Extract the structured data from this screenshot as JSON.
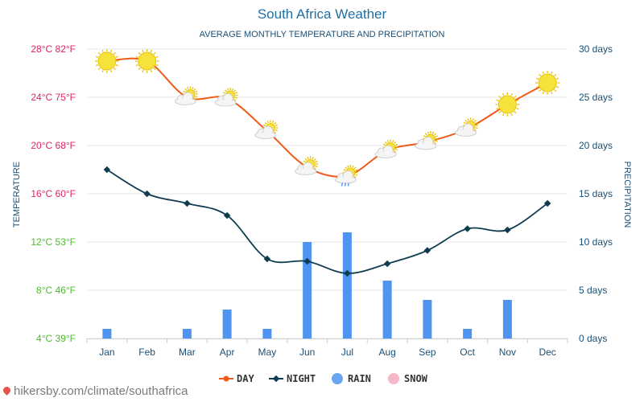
{
  "header": {
    "title": "South Africa Weather",
    "subtitle": "AVERAGE MONTHLY TEMPERATURE AND PRECIPITATION"
  },
  "axes": {
    "left_title": "TEMPERATURE",
    "right_title": "PRECIPITATION",
    "left_ticks": [
      "4°C 39°F",
      "8°C 46°F",
      "12°C 53°F",
      "16°C 60°F",
      "20°C 68°F",
      "24°C 75°F",
      "28°C 82°F"
    ],
    "right_ticks": [
      "0 days",
      "5 days",
      "10 days",
      "15 days",
      "20 days",
      "25 days",
      "30 days"
    ]
  },
  "legend": {
    "day": "DAY",
    "night": "NIGHT",
    "rain": "RAIN",
    "snow": "SNOW"
  },
  "source": "hikersby.com/climate/southafrica",
  "colors": {
    "day": "#f05a19",
    "night": "#0f3d4f",
    "rain": "#4f94f0",
    "snow": "#f4b8c8",
    "tick_hot": "#e0245e",
    "tick_mild": "#4cba2f",
    "grid": "#e6e6e6"
  },
  "chart_data": {
    "type": "line+bar",
    "title": "South Africa Weather",
    "subtitle": "AVERAGE MONTHLY TEMPERATURE AND PRECIPITATION",
    "categories": [
      "Jan",
      "Feb",
      "Mar",
      "Apr",
      "May",
      "Jun",
      "Jul",
      "Aug",
      "Sep",
      "Oct",
      "Nov",
      "Dec"
    ],
    "series": [
      {
        "name": "DAY",
        "axis": "temperature",
        "unit": "°C",
        "values": [
          27,
          27,
          24,
          23.9,
          21.2,
          18.2,
          17.5,
          19.6,
          20.3,
          21.4,
          23.4,
          25.2
        ]
      },
      {
        "name": "NIGHT",
        "axis": "temperature",
        "unit": "°C",
        "values": [
          18,
          16,
          15.2,
          14.2,
          10.6,
          10.4,
          9.4,
          10.2,
          11.3,
          13.1,
          13,
          15.2
        ]
      },
      {
        "name": "RAIN",
        "axis": "precipitation",
        "unit": "days",
        "values": [
          1,
          0,
          1,
          3,
          1,
          10,
          11,
          6,
          4,
          1,
          4,
          0
        ]
      },
      {
        "name": "SNOW",
        "axis": "precipitation",
        "unit": "days",
        "values": [
          0,
          0,
          0,
          0,
          0,
          0,
          0,
          0,
          0,
          0,
          0,
          0
        ]
      }
    ],
    "weather_icons": [
      "sun",
      "sun",
      "partly-cloudy",
      "partly-cloudy",
      "partly-cloudy",
      "partly-cloudy",
      "partly-cloudy-rain",
      "partly-cloudy",
      "partly-cloudy",
      "partly-cloudy",
      "sun",
      "sun"
    ],
    "ylim_temperature": [
      4,
      28
    ],
    "ylim_precipitation": [
      0,
      30
    ],
    "xlabel": "",
    "ylabel_left": "TEMPERATURE",
    "ylabel_right": "PRECIPITATION",
    "legend_position": "bottom-center",
    "grid": true
  }
}
